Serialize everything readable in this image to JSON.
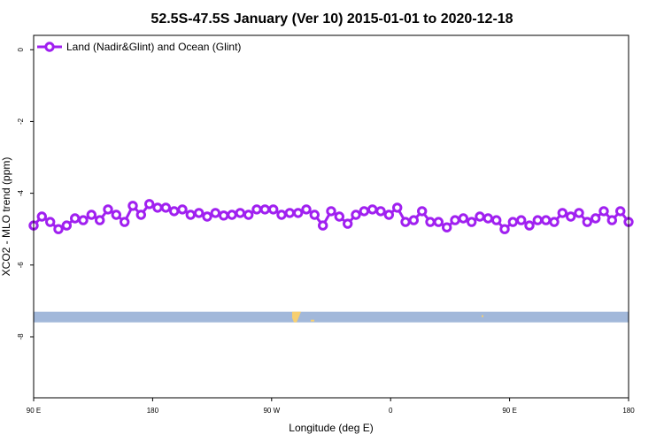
{
  "chart_data": {
    "type": "line",
    "title": "52.5S-47.5S January (Ver 10)   2015-01-01 to 2020-12-18",
    "xlabel": "Longitude (deg E)",
    "ylabel": "XCO2 - MLO trend (ppm)",
    "x_tick_labels": [
      "90 E",
      "180",
      "90 W",
      "0",
      "90 E",
      "180"
    ],
    "y_tick_labels": [
      "0",
      "-2",
      "-4",
      "-6",
      "-8"
    ],
    "y_ticks": [
      0,
      -2,
      -4,
      -6,
      -8
    ],
    "xlim": [
      90,
      450
    ],
    "ylim": [
      -9.7,
      0.4
    ],
    "series": [
      {
        "name": "Land (Nadir&Glint) and Ocean (Glint)",
        "color": "#a020f0",
        "x": [
          90,
          95,
          100,
          105,
          110,
          115,
          120,
          125,
          130,
          135,
          140,
          145,
          150,
          155,
          160,
          165,
          170,
          175,
          180,
          185,
          190,
          195,
          200,
          205,
          210,
          215,
          220,
          225,
          230,
          235,
          240,
          245,
          250,
          255,
          260,
          265,
          270,
          275,
          280,
          285,
          290,
          295,
          300,
          305,
          310,
          315,
          320,
          325,
          330,
          335,
          340,
          345,
          350,
          355,
          360,
          365,
          370,
          375,
          380,
          385,
          390,
          395,
          400,
          405,
          410,
          415,
          420,
          425,
          430,
          435,
          440,
          445,
          450
        ],
        "y": [
          -4.9,
          -4.65,
          -4.8,
          -5.0,
          -4.9,
          -4.7,
          -4.75,
          -4.6,
          -4.75,
          -4.45,
          -4.6,
          -4.8,
          -4.35,
          -4.6,
          -4.3,
          -4.4,
          -4.4,
          -4.5,
          -4.45,
          -4.6,
          -4.55,
          -4.65,
          -4.55,
          -4.62,
          -4.6,
          -4.55,
          -4.6,
          -4.45,
          -4.45,
          -4.45,
          -4.6,
          -4.55,
          -4.55,
          -4.45,
          -4.6,
          -4.9,
          -4.5,
          -4.65,
          -4.85,
          -4.6,
          -4.5,
          -4.45,
          -4.5,
          -4.6,
          -4.4,
          -4.8,
          -4.75,
          -4.5,
          -4.8,
          -4.8,
          -4.95,
          -4.75,
          -4.7,
          -4.8,
          -4.65,
          -4.7,
          -4.75,
          -5.0,
          -4.8,
          -4.75,
          -4.9,
          -4.75,
          -4.75,
          -4.8,
          -4.55,
          -4.65,
          -4.55,
          -4.8,
          -4.7,
          -4.5,
          -4.75,
          -4.5,
          -4.8
        ]
      }
    ],
    "map_strip": {
      "y_center": -7.45,
      "ocean_color": "#a2b8da",
      "land_color": "#f7cf70"
    },
    "legend_position": "top-left",
    "grid": false
  }
}
